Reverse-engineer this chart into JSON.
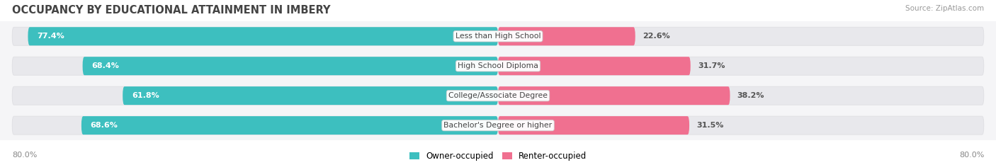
{
  "title": "OCCUPANCY BY EDUCATIONAL ATTAINMENT IN IMBERY",
  "source": "Source: ZipAtlas.com",
  "categories": [
    "Less than High School",
    "High School Diploma",
    "College/Associate Degree",
    "Bachelor's Degree or higher"
  ],
  "owner_values": [
    77.4,
    68.4,
    61.8,
    68.6
  ],
  "renter_values": [
    22.6,
    31.7,
    38.2,
    31.5
  ],
  "owner_color": "#3DBFBF",
  "renter_color": "#F07090",
  "bg_bar_color": "#E8E8EC",
  "owner_label": "Owner-occupied",
  "renter_label": "Renter-occupied",
  "x_left_label": "80.0%",
  "x_right_label": "80.0%",
  "title_fontsize": 10.5,
  "bar_height": 0.62,
  "background_color": "#FFFFFF",
  "axis_bg_color": "#F5F5F7",
  "max_val": 80.0
}
